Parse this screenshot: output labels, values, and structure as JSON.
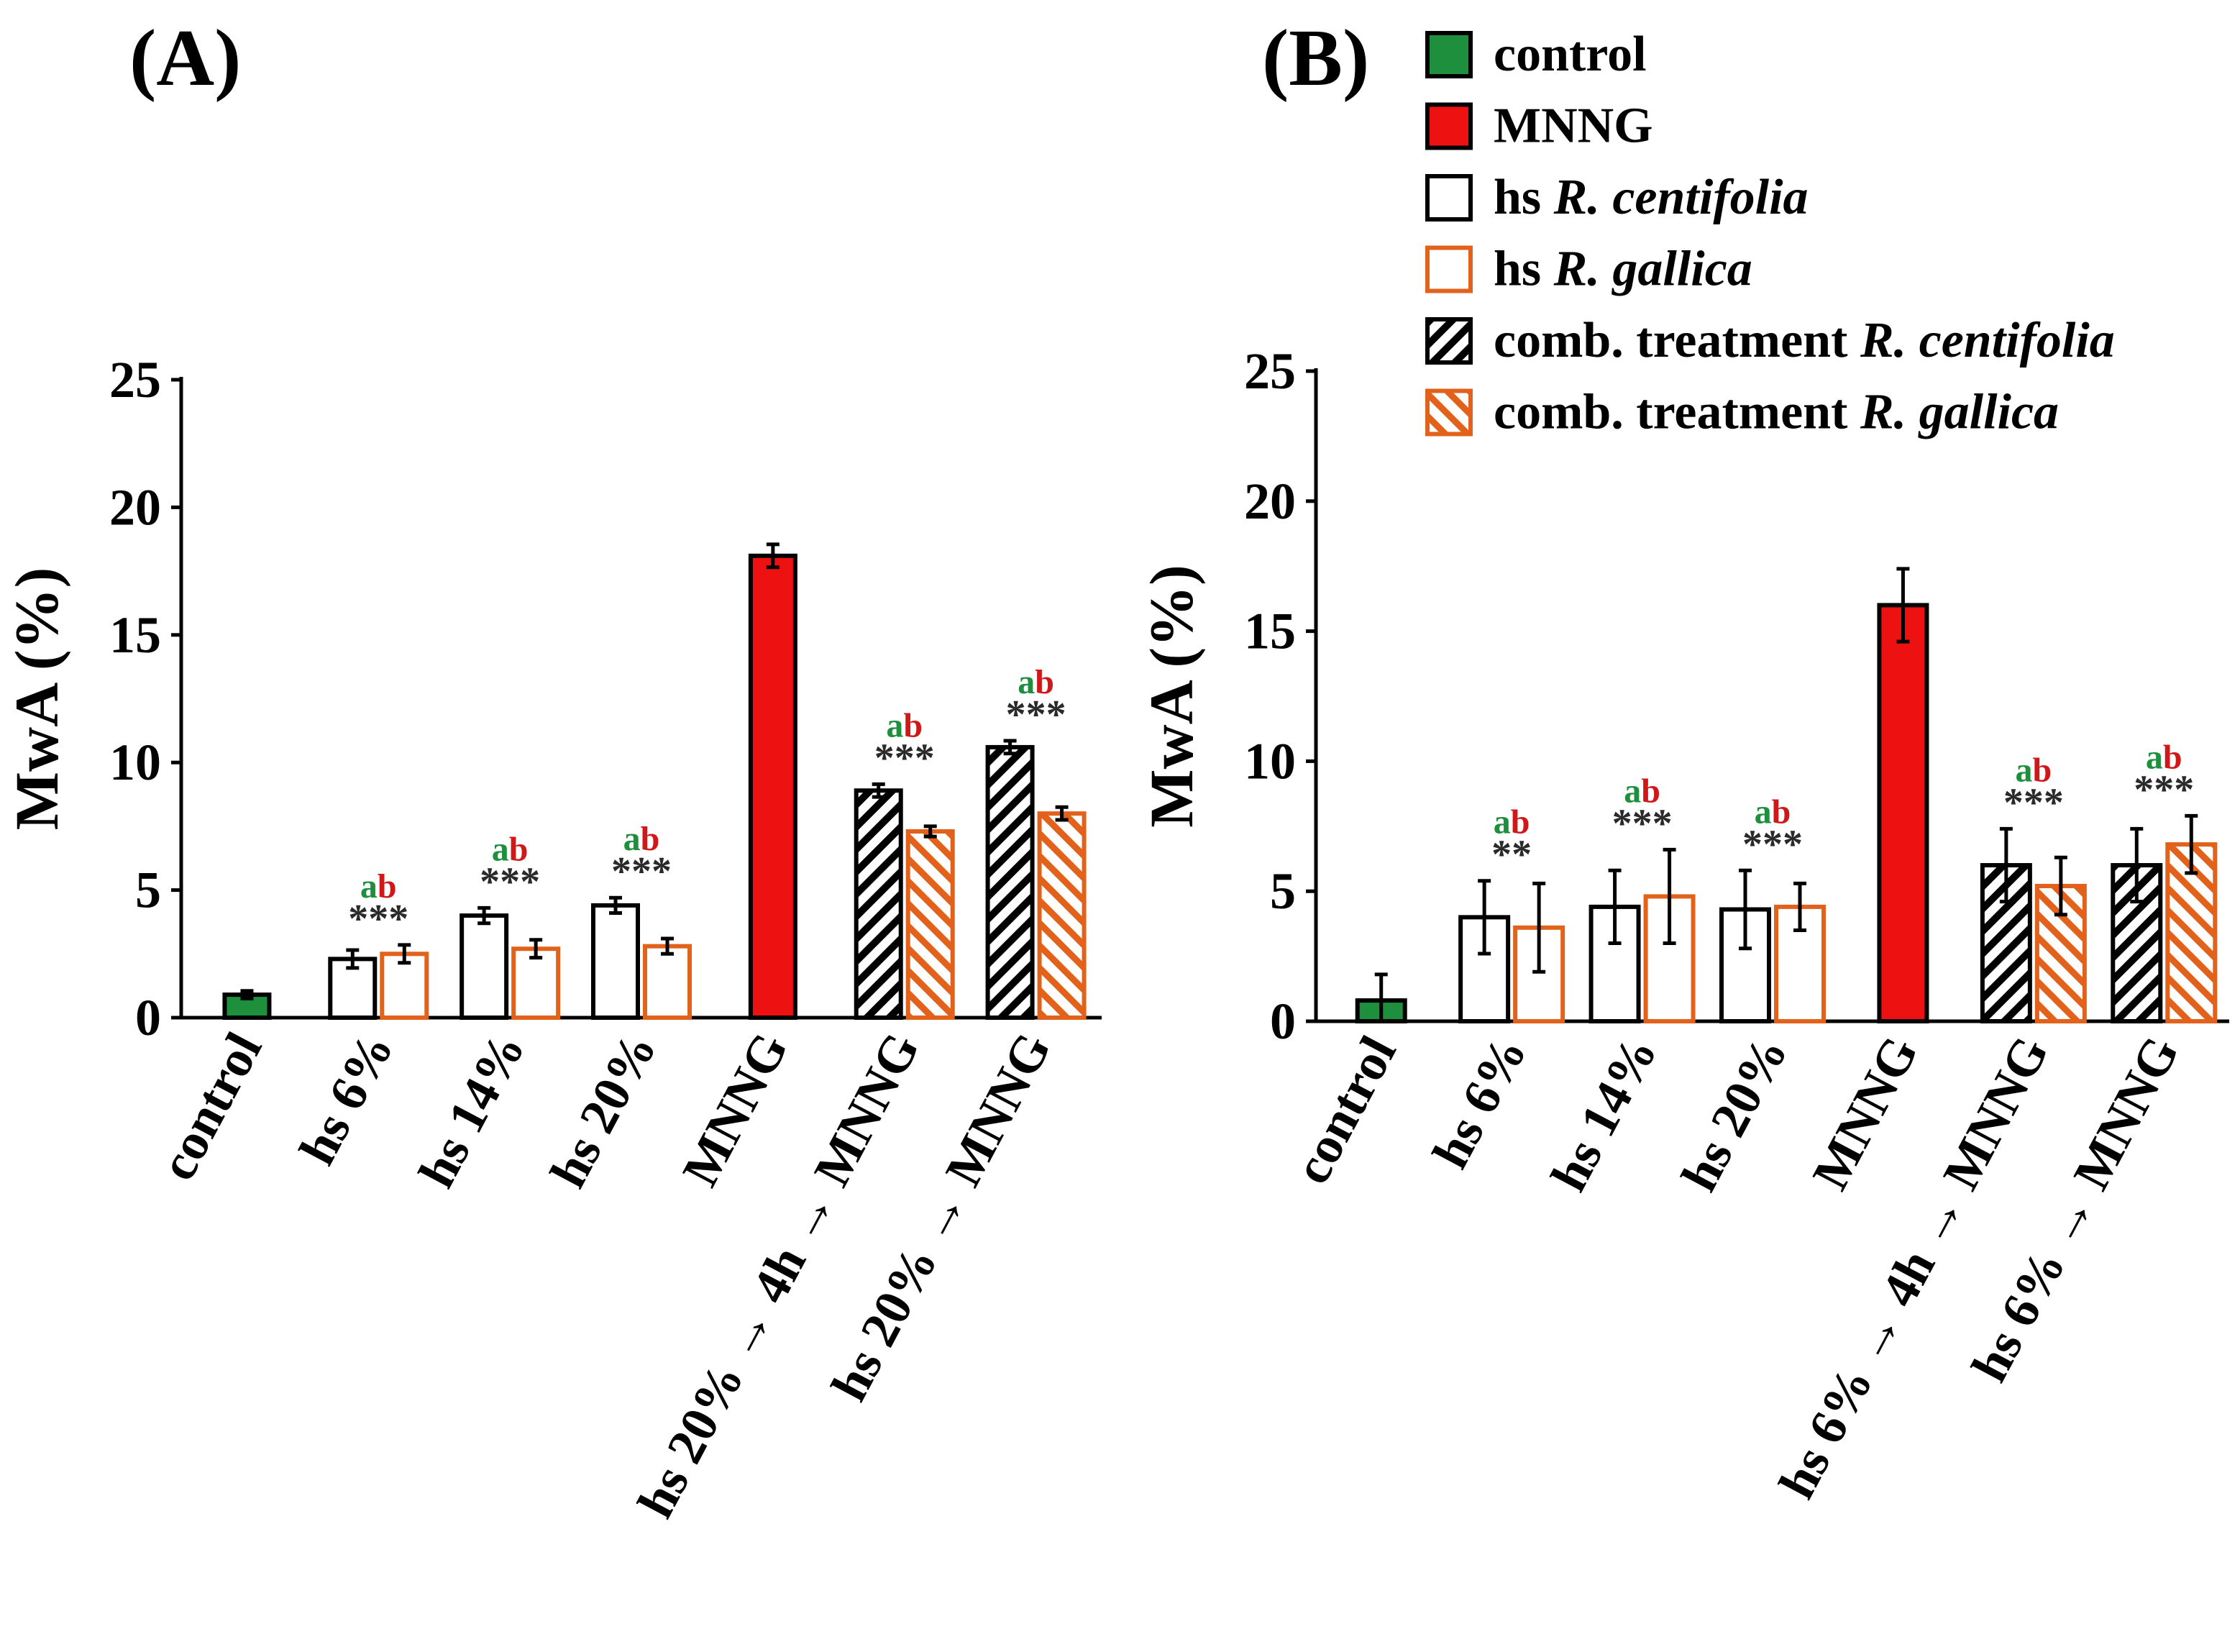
{
  "colors": {
    "control": "#1e8f3c",
    "mnng": "#ee1111",
    "centifolia": "#000000",
    "gallica": "#e2621b",
    "letter_a": "#1e8f3c",
    "letter_b": "#d11818",
    "stars": "#2a2a2a"
  },
  "legend": {
    "items": [
      {
        "key": "control",
        "prefix": "control",
        "italic": ""
      },
      {
        "key": "mnng",
        "prefix": "MNNG",
        "italic": ""
      },
      {
        "key": "hs_centifolia",
        "prefix": "hs ",
        "italic": "R. centifolia"
      },
      {
        "key": "hs_gallica",
        "prefix": "hs ",
        "italic": "R. gallica"
      },
      {
        "key": "comb_centifolia",
        "prefix": "comb. treatment ",
        "italic": "R. centifolia"
      },
      {
        "key": "comb_gallica",
        "prefix": "comb. treatment ",
        "italic": "R. gallica"
      }
    ]
  },
  "chart_data": [
    {
      "panel": "(A)",
      "type": "bar",
      "ylabel": "MwA (%)",
      "ylim": [
        0,
        25
      ],
      "yticks": [
        0,
        5,
        10,
        15,
        20,
        25
      ],
      "categories": [
        "control",
        "hs 6%",
        "hs 14%",
        "hs 20%",
        "MNNG",
        "hs 20% → 4h → MNNG",
        "hs 20% → MNNG"
      ],
      "groups": [
        {
          "category": "control",
          "bars": [
            {
              "kind": "control",
              "value": 0.9,
              "error": 0.15
            }
          ],
          "letters": "",
          "stars": ""
        },
        {
          "category": "hs 6%",
          "bars": [
            {
              "kind": "hs_centifolia",
              "value": 2.3,
              "error": 0.35
            },
            {
              "kind": "hs_gallica",
              "value": 2.5,
              "error": 0.35
            }
          ],
          "letters": "ab",
          "stars": "***"
        },
        {
          "category": "hs 14%",
          "bars": [
            {
              "kind": "hs_centifolia",
              "value": 4.0,
              "error": 0.3
            },
            {
              "kind": "hs_gallica",
              "value": 2.7,
              "error": 0.35
            }
          ],
          "letters": "ab",
          "stars": "***"
        },
        {
          "category": "hs 20%",
          "bars": [
            {
              "kind": "hs_centifolia",
              "value": 4.4,
              "error": 0.3
            },
            {
              "kind": "hs_gallica",
              "value": 2.8,
              "error": 0.3
            }
          ],
          "letters": "ab",
          "stars": "***"
        },
        {
          "category": "MNNG",
          "bars": [
            {
              "kind": "mnng",
              "value": 18.1,
              "error": 0.45
            }
          ],
          "letters": "",
          "stars": ""
        },
        {
          "category": "hs 20% → 4h → MNNG",
          "bars": [
            {
              "kind": "comb_centifolia",
              "value": 8.9,
              "error": 0.25
            },
            {
              "kind": "comb_gallica",
              "value": 7.3,
              "error": 0.2
            }
          ],
          "letters": "ab",
          "stars": "***"
        },
        {
          "category": "hs 20% → MNNG",
          "bars": [
            {
              "kind": "comb_centifolia",
              "value": 10.6,
              "error": 0.25
            },
            {
              "kind": "comb_gallica",
              "value": 8.0,
              "error": 0.25
            }
          ],
          "letters": "ab",
          "stars": "***"
        }
      ]
    },
    {
      "panel": "(B)",
      "type": "bar",
      "ylabel": "MwA (%)",
      "ylim": [
        0,
        25
      ],
      "yticks": [
        0,
        5,
        10,
        15,
        20,
        25
      ],
      "categories": [
        "control",
        "hs 6%",
        "hs 14%",
        "hs 20%",
        "MNNG",
        "hs 6% → 4h → MNNG",
        "hs 6% → MNNG"
      ],
      "groups": [
        {
          "category": "control",
          "bars": [
            {
              "kind": "control",
              "value": 0.8,
              "error": 1.0
            }
          ],
          "letters": "",
          "stars": ""
        },
        {
          "category": "hs 6%",
          "bars": [
            {
              "kind": "hs_centifolia",
              "value": 4.0,
              "error": 1.4
            },
            {
              "kind": "hs_gallica",
              "value": 3.6,
              "error": 1.7
            }
          ],
          "letters": "ab",
          "stars": "**"
        },
        {
          "category": "hs 14%",
          "bars": [
            {
              "kind": "hs_centifolia",
              "value": 4.4,
              "error": 1.4
            },
            {
              "kind": "hs_gallica",
              "value": 4.8,
              "error": 1.8
            }
          ],
          "letters": "ab",
          "stars": "***"
        },
        {
          "category": "hs 20%",
          "bars": [
            {
              "kind": "hs_centifolia",
              "value": 4.3,
              "error": 1.5
            },
            {
              "kind": "hs_gallica",
              "value": 4.4,
              "error": 0.9
            }
          ],
          "letters": "ab",
          "stars": "***"
        },
        {
          "category": "MNNG",
          "bars": [
            {
              "kind": "mnng",
              "value": 16.0,
              "error": 1.4
            }
          ],
          "letters": "",
          "stars": ""
        },
        {
          "category": "hs 6% → 4h → MNNG",
          "bars": [
            {
              "kind": "comb_centifolia",
              "value": 6.0,
              "error": 1.4
            },
            {
              "kind": "comb_gallica",
              "value": 5.2,
              "error": 1.1
            }
          ],
          "letters": "ab",
          "stars": "***"
        },
        {
          "category": "hs 6% → MNNG",
          "bars": [
            {
              "kind": "comb_centifolia",
              "value": 6.0,
              "error": 1.4
            },
            {
              "kind": "comb_gallica",
              "value": 6.8,
              "error": 1.1
            }
          ],
          "letters": "ab",
          "stars": "***"
        }
      ]
    }
  ]
}
